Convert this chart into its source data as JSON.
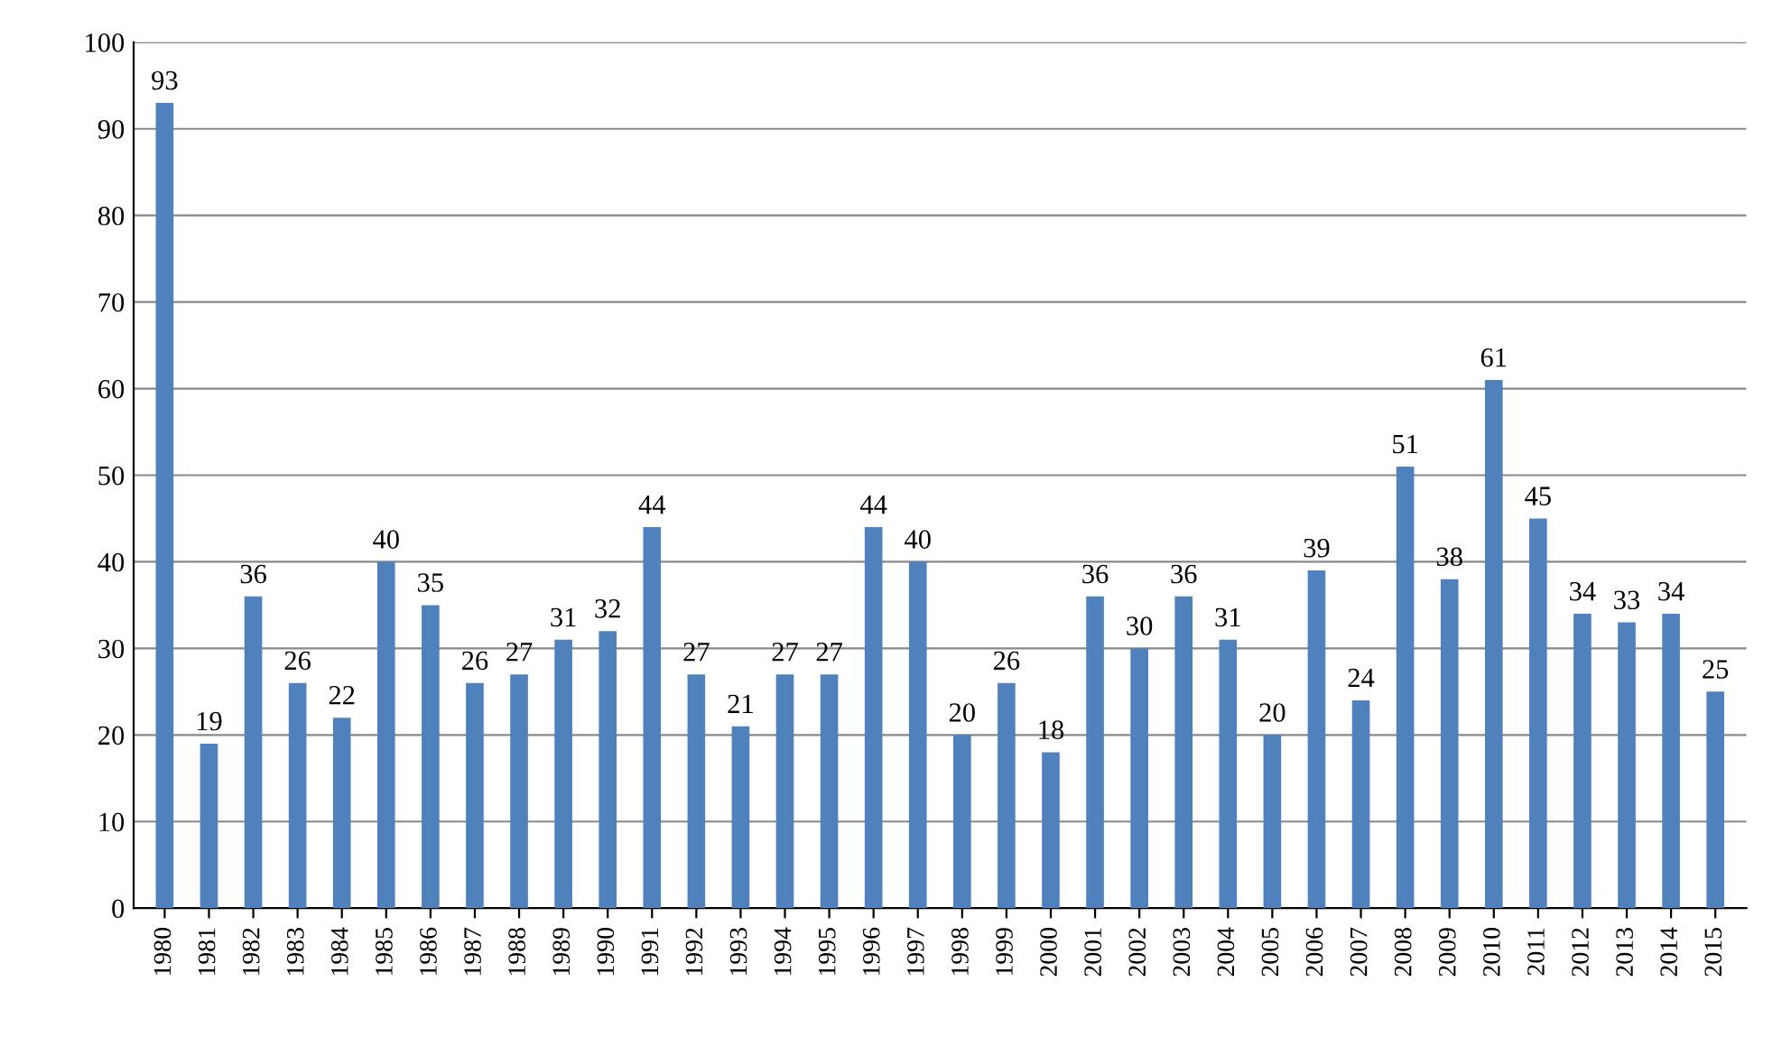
{
  "chart_data": {
    "type": "bar",
    "categories": [
      "1980",
      "1981",
      "1982",
      "1983",
      "1984",
      "1985",
      "1986",
      "1987",
      "1988",
      "1989",
      "1990",
      "1991",
      "1992",
      "1993",
      "1994",
      "1995",
      "1996",
      "1997",
      "1998",
      "1999",
      "2000",
      "2001",
      "2002",
      "2003",
      "2004",
      "2005",
      "2006",
      "2007",
      "2008",
      "2009",
      "2010",
      "2011",
      "2012",
      "2013",
      "2014",
      "2015"
    ],
    "values": [
      93,
      19,
      36,
      26,
      22,
      40,
      35,
      26,
      27,
      31,
      32,
      44,
      27,
      21,
      27,
      27,
      44,
      40,
      20,
      26,
      18,
      36,
      30,
      36,
      31,
      20,
      39,
      24,
      51,
      38,
      61,
      45,
      34,
      33,
      34,
      25
    ],
    "color": "#4f81bd",
    "ylim": [
      0,
      100
    ],
    "yticks": [
      0,
      10,
      20,
      30,
      40,
      50,
      60,
      70,
      80,
      90,
      100
    ],
    "grid": "y",
    "data_labels": true
  }
}
